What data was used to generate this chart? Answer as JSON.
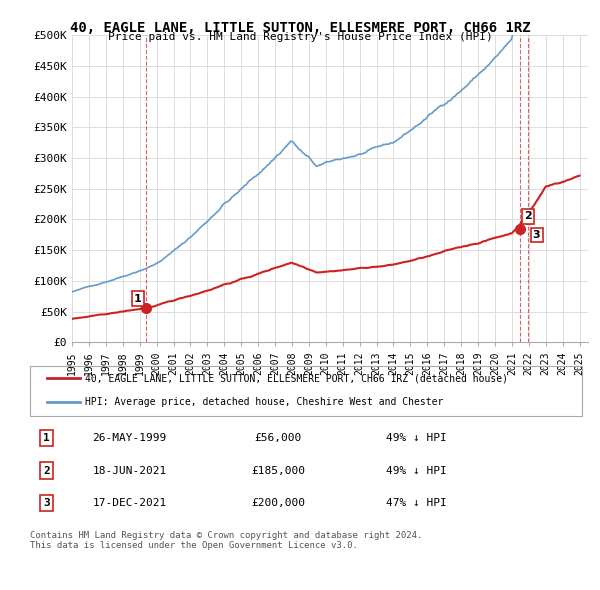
{
  "title": "40, EAGLE LANE, LITTLE SUTTON, ELLESMERE PORT, CH66 1RZ",
  "subtitle": "Price paid vs. HM Land Registry's House Price Index (HPI)",
  "ylabel": "",
  "ylim": [
    0,
    500000
  ],
  "yticks": [
    0,
    50000,
    100000,
    150000,
    200000,
    250000,
    300000,
    350000,
    400000,
    450000,
    500000
  ],
  "ytick_labels": [
    "£0",
    "£50K",
    "£100K",
    "£150K",
    "£200K",
    "£250K",
    "£300K",
    "£350K",
    "£400K",
    "£450K",
    "£500K"
  ],
  "xlim_start": 1995.0,
  "xlim_end": 2025.5,
  "hpi_color": "#6699cc",
  "property_color": "#cc2222",
  "sale_dates": [
    1999.4,
    2021.46,
    2021.96
  ],
  "sale_prices": [
    56000,
    185000,
    200000
  ],
  "sale_labels": [
    "1",
    "2",
    "3"
  ],
  "legend_property": "40, EAGLE LANE, LITTLE SUTTON, ELLESMERE PORT, CH66 1RZ (detached house)",
  "legend_hpi": "HPI: Average price, detached house, Cheshire West and Chester",
  "table_rows": [
    [
      "1",
      "26-MAY-1999",
      "£56,000",
      "49% ↓ HPI"
    ],
    [
      "2",
      "18-JUN-2021",
      "£185,000",
      "49% ↓ HPI"
    ],
    [
      "3",
      "17-DEC-2021",
      "£200,000",
      "47% ↓ HPI"
    ]
  ],
  "footer": "Contains HM Land Registry data © Crown copyright and database right 2024.\nThis data is licensed under the Open Government Licence v3.0.",
  "background_color": "#ffffff",
  "grid_color": "#dddddd"
}
